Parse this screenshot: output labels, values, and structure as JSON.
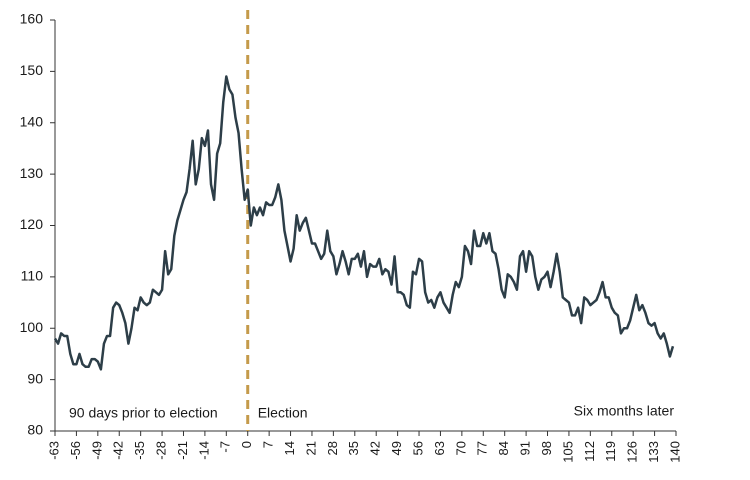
{
  "chart_data": {
    "type": "line",
    "x": [
      -63,
      -62,
      -61,
      -60,
      -59,
      -58,
      -57,
      -56,
      -55,
      -54,
      -53,
      -52,
      -51,
      -50,
      -49,
      -48,
      -47,
      -46,
      -45,
      -44,
      -43,
      -42,
      -41,
      -40,
      -39,
      -38,
      -37,
      -36,
      -35,
      -34,
      -33,
      -32,
      -31,
      -30,
      -29,
      -28,
      -27,
      -26,
      -25,
      -24,
      -23,
      -22,
      -21,
      -20,
      -19,
      -18,
      -17,
      -16,
      -15,
      -14,
      -13,
      -12,
      -11,
      -10,
      -9,
      -8,
      -7,
      -6,
      -5,
      -4,
      -3,
      -2,
      -1,
      0,
      1,
      2,
      3,
      4,
      5,
      6,
      7,
      8,
      9,
      10,
      11,
      12,
      13,
      14,
      15,
      16,
      17,
      18,
      19,
      20,
      21,
      22,
      23,
      24,
      25,
      26,
      27,
      28,
      29,
      30,
      31,
      32,
      33,
      34,
      35,
      36,
      37,
      38,
      39,
      40,
      41,
      42,
      43,
      44,
      45,
      46,
      47,
      48,
      49,
      50,
      51,
      52,
      53,
      54,
      55,
      56,
      57,
      58,
      59,
      60,
      61,
      62,
      63,
      64,
      65,
      66,
      67,
      68,
      69,
      70,
      71,
      72,
      73,
      74,
      75,
      76,
      77,
      78,
      79,
      80,
      81,
      82,
      83,
      84,
      85,
      86,
      87,
      88,
      89,
      90,
      91,
      92,
      93,
      94,
      95,
      96,
      97,
      98,
      99,
      100,
      101,
      102,
      103,
      104,
      105,
      106,
      107,
      108,
      109,
      110,
      111,
      112,
      113,
      114,
      115,
      116,
      117,
      118,
      119,
      120,
      121,
      122,
      123,
      124,
      125,
      126,
      127,
      128,
      129,
      130,
      131,
      132,
      133,
      134,
      135,
      136,
      137,
      138,
      139
    ],
    "series": [
      {
        "color": "#2d3e48",
        "values": [
          98,
          97,
          99,
          98.5,
          98.5,
          95,
          93,
          93,
          95,
          93,
          92.5,
          92.5,
          94,
          94,
          93.5,
          92,
          97,
          98.5,
          98.5,
          104,
          105,
          104.5,
          103,
          101,
          97,
          100,
          104,
          103.5,
          106,
          105,
          104.5,
          105,
          107.5,
          107,
          106.5,
          107.5,
          115,
          110.5,
          111.5,
          118,
          121,
          123,
          125,
          126.5,
          131,
          136.5,
          128,
          131,
          137,
          135.5,
          138.5,
          128,
          125,
          134,
          136,
          144,
          149,
          146.5,
          145.5,
          141,
          138,
          131,
          125,
          127,
          120,
          123.5,
          122,
          123.5,
          122,
          124.5,
          124,
          124,
          125.5,
          128,
          125,
          119,
          116,
          113,
          115.5,
          122,
          119,
          120.5,
          121.5,
          119,
          116.5,
          116.5,
          115,
          113.5,
          114.5,
          119,
          115,
          114,
          110.5,
          112.5,
          115,
          113,
          110.5,
          113.5,
          113.5,
          114.5,
          112,
          115,
          110,
          112.5,
          112,
          112,
          113.5,
          110.5,
          111.5,
          111,
          108.5,
          114,
          107,
          107,
          106.5,
          104.5,
          104,
          111,
          110.5,
          113.5,
          113,
          107,
          105,
          105.5,
          104,
          106,
          107,
          105,
          104,
          103,
          106.5,
          109,
          108,
          110,
          116,
          115,
          112.5,
          119,
          116,
          116,
          118.5,
          116.5,
          118.5,
          115,
          114.5,
          111.5,
          107.5,
          106,
          110.5,
          110,
          109,
          107.5,
          114,
          115,
          111,
          115,
          114,
          110,
          107.5,
          109.5,
          110,
          111,
          108,
          111,
          114.5,
          111,
          106,
          105.5,
          105,
          102.5,
          102.5,
          104,
          101,
          106,
          105.5,
          104.5,
          105,
          105.5,
          107,
          109,
          106,
          106,
          104,
          103,
          102.5,
          99,
          100,
          100,
          101.5,
          104,
          106.5,
          103.5,
          104.5,
          103,
          101,
          100.5,
          101,
          99,
          98,
          99,
          97,
          94.5,
          96.5
        ]
      }
    ],
    "xlim": [
      -63,
      140
    ],
    "xticks": [
      -63,
      -56,
      -49,
      -42,
      -35,
      -28,
      -21,
      -14,
      -7,
      0,
      7,
      14,
      21,
      28,
      35,
      42,
      49,
      56,
      63,
      70,
      77,
      84,
      91,
      98,
      105,
      112,
      119,
      126,
      133,
      140
    ],
    "ylim": [
      80,
      160
    ],
    "yticks": [
      80,
      90,
      100,
      110,
      120,
      130,
      140,
      150,
      160
    ],
    "annotations": [
      {
        "text": "90 days prior to election"
      },
      {
        "text": "Election",
        "x": 0,
        "color": "#c49a4a"
      },
      {
        "text": "Six months later"
      }
    ]
  }
}
